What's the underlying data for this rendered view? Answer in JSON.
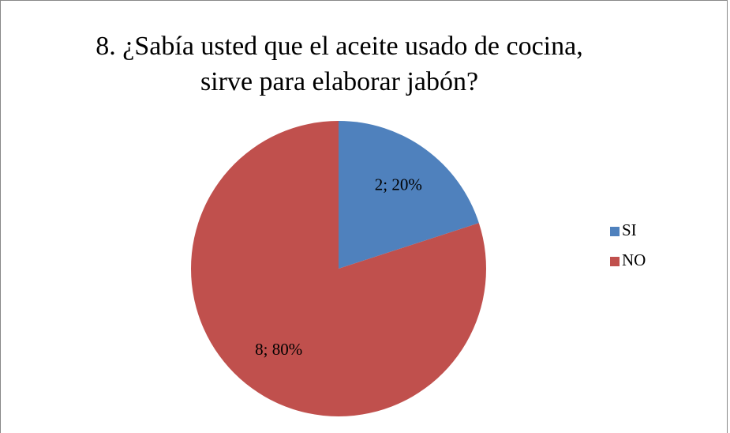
{
  "chart_data": {
    "type": "pie",
    "title": "8. ¿Sabía usted que el aceite usado de cocina, sirve para elaborar jabón?",
    "categories": [
      "SI",
      "NO"
    ],
    "values": [
      2,
      8
    ],
    "value_labels": [
      "2; 20%",
      "8; 80%"
    ],
    "colors": [
      "#4f81bd",
      "#c0504d"
    ],
    "legend": "right"
  }
}
